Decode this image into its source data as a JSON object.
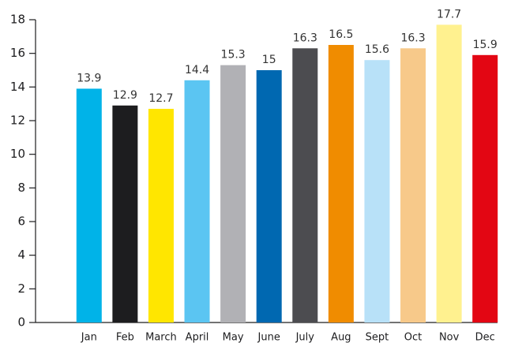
{
  "chart_data": {
    "type": "bar",
    "categories": [
      "Jan",
      "Feb",
      "March",
      "April",
      "May",
      "June",
      "July",
      "Aug",
      "Sept",
      "Oct",
      "Nov",
      "Dec"
    ],
    "values": [
      13.9,
      12.9,
      12.7,
      14.4,
      15.3,
      15,
      16.3,
      16.5,
      15.6,
      16.3,
      17.7,
      15.9
    ],
    "colors": [
      "#00b3e8",
      "#1d1d1f",
      "#ffe600",
      "#5bc5f2",
      "#b1b1b5",
      "#0068b1",
      "#4c4c50",
      "#f08c00",
      "#b8e1f8",
      "#f7c98a",
      "#fff18f",
      "#e30613"
    ],
    "ylim": [
      0,
      18
    ],
    "yticks": [
      0,
      2,
      4,
      6,
      8,
      10,
      12,
      14,
      16,
      18
    ],
    "grid": false
  }
}
